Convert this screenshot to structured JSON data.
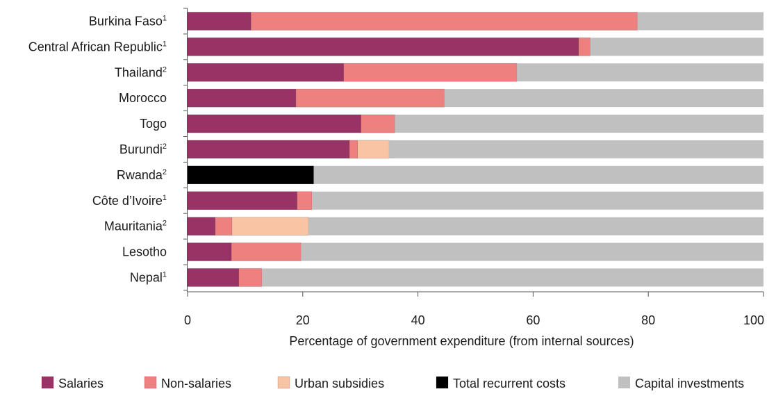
{
  "chart_data": {
    "type": "bar",
    "orientation": "horizontal",
    "stacked": true,
    "title": "",
    "xlabel": "Percentage of government expenditure (from internal sources)",
    "ylabel": "",
    "xlim": [
      0,
      100
    ],
    "x_ticks": [
      "0",
      "20",
      "40",
      "60",
      "80",
      "100"
    ],
    "grid": false,
    "legend_position": "bottom",
    "categories": [
      {
        "name": "Burkina Faso",
        "sup": "1"
      },
      {
        "name": "Central African Republic",
        "sup": "1"
      },
      {
        "name": "Thailand",
        "sup": "2"
      },
      {
        "name": "Morocco",
        "sup": ""
      },
      {
        "name": "Togo",
        "sup": ""
      },
      {
        "name": "Burundi",
        "sup": "2"
      },
      {
        "name": "Rwanda",
        "sup": "2"
      },
      {
        "name": "Côte d’Ivoire",
        "sup": "1"
      },
      {
        "name": "Mauritania",
        "sup": "2"
      },
      {
        "name": "Lesotho",
        "sup": ""
      },
      {
        "name": "Nepal",
        "sup": "1"
      }
    ],
    "series": [
      {
        "name": "Salaries",
        "color": "#993366",
        "values": [
          11.0,
          67.9,
          27.1,
          18.8,
          30.1,
          28.1,
          0,
          19.0,
          4.8,
          7.6,
          8.9
        ]
      },
      {
        "name": "Non-salaries",
        "color": "#EE8080",
        "values": [
          67.1,
          2.0,
          30.1,
          25.8,
          5.9,
          1.4,
          0,
          2.6,
          2.9,
          12.1,
          4.0
        ]
      },
      {
        "name": "Urban subsidies",
        "color": "#F8C4A4",
        "values": [
          0,
          0,
          0,
          0,
          0,
          5.5,
          0,
          0,
          13.3,
          0,
          0
        ]
      },
      {
        "name": "Total recurrent costs",
        "color": "#000000",
        "values": [
          0,
          0,
          0,
          0,
          0,
          0,
          21.9,
          0,
          0,
          0,
          0
        ]
      },
      {
        "name": "Capital investments",
        "color": "#C0C0C0",
        "values": [
          21.9,
          30.1,
          42.8,
          55.4,
          64.0,
          65.0,
          78.1,
          78.4,
          79.0,
          80.3,
          87.1
        ]
      }
    ]
  }
}
